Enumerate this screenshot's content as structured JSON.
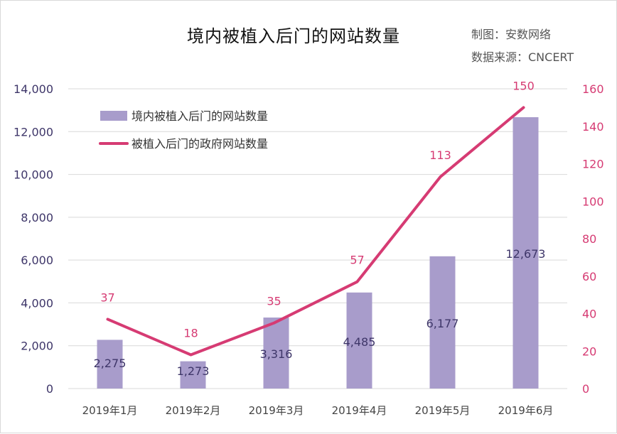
{
  "title": "境内被植入后门的网站数量",
  "credit": "制图：安数网络",
  "source": "数据来源：CNCERT",
  "colors": {
    "bar": "#a89ccb",
    "line": "#d63b73",
    "left_axis_text": "#3e3669",
    "right_axis_text": "#d63b73",
    "category_text": "#444444",
    "grid": "#d9d9d9"
  },
  "chart_data": {
    "type": "bar",
    "categories": [
      "2019年1月",
      "2019年2月",
      "2019年3月",
      "2019年4月",
      "2019年5月",
      "2019年6月"
    ],
    "series": [
      {
        "name": "境内被植入后门的网站数量",
        "type": "bar",
        "axis": "left",
        "values": [
          2275,
          1273,
          3316,
          4485,
          6177,
          12673
        ],
        "labels": [
          "2,275",
          "1,273",
          "3,316",
          "4,485",
          "6,177",
          "12,673"
        ]
      },
      {
        "name": "被植入后门的政府网站数量",
        "type": "line",
        "axis": "right",
        "values": [
          37,
          18,
          35,
          57,
          113,
          150
        ],
        "labels": [
          "37",
          "18",
          "35",
          "57",
          "113",
          "150"
        ]
      }
    ],
    "y_left": {
      "ylim": [
        0,
        14000
      ],
      "ticks": [
        "0",
        "2,000",
        "4,000",
        "6,000",
        "8,000",
        "10,000",
        "12,000",
        "14,000"
      ]
    },
    "y_right": {
      "ylim": [
        0,
        160
      ],
      "ticks": [
        "0",
        "20",
        "40",
        "60",
        "80",
        "100",
        "120",
        "140",
        "160"
      ]
    },
    "grid": true,
    "legend": "top-left"
  }
}
